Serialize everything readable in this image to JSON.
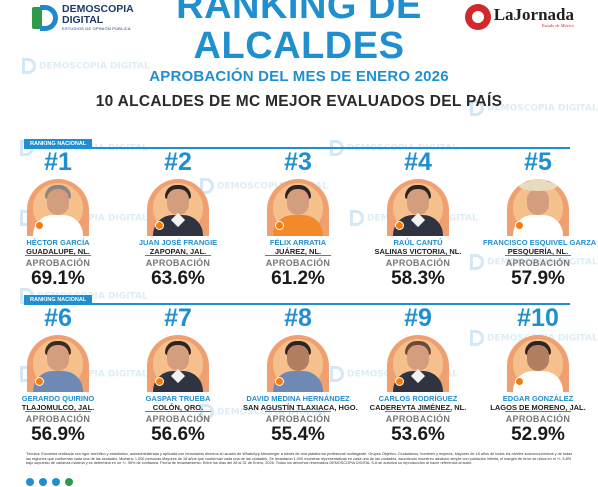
{
  "brand": {
    "name_line1": "DEMOSCOPIA",
    "name_line2": "DIGITAL",
    "tagline": "ESTUDIOS DE OPINIÓN PÚBLICA"
  },
  "partner": {
    "name": "LaJornada",
    "subtitle": "Estado de México"
  },
  "header": {
    "title_line1": "RANKING DE",
    "title_line2": "ALCALDES",
    "subtitle": "APROBACIÓN DEL MES DE ENERO 2026",
    "headline": "10 ALCALDES DE MC MEJOR EVALUADOS DEL PAÍS"
  },
  "watermark_text": "DEMOSCOPIA DIGITAL",
  "band_label": "RANKING NACIONAL",
  "approval_label": "APROBACIÓN",
  "mayors": [
    {
      "rank": "#1",
      "name": "HÉCTOR GARCÍA",
      "city": "GUADALUPE, NL.",
      "approval": "69.1%"
    },
    {
      "rank": "#2",
      "name": "JUAN JOSÉ FRANGIE",
      "city": "ZAPOPAN, JAL.",
      "approval": "63.6%"
    },
    {
      "rank": "#3",
      "name": "FÉLIX ARRATIA",
      "city": "JUÁREZ, NL.",
      "approval": "61.2%"
    },
    {
      "rank": "#4",
      "name": "RAÚL CANTÚ",
      "city": "SALINAS VICTORIA, NL.",
      "approval": "58.3%"
    },
    {
      "rank": "#5",
      "name": "FRANCISCO ESQUIVEL GARZA",
      "city": "PESQUERÍA, NL.",
      "approval": "57.9%"
    },
    {
      "rank": "#6",
      "name": "GERARDO QUIRINO",
      "city": "TLAJOMULCO, JAL.",
      "approval": "56.9%"
    },
    {
      "rank": "#7",
      "name": "GASPAR TRUEBA",
      "city": "COLÓN, QRO.",
      "approval": "56.6%"
    },
    {
      "rank": "#8",
      "name": "DAVID MEDINA HERNÁNDEZ",
      "city": "SAN AGUSTÍN TLAXIACA, HGO.",
      "approval": "55.4%"
    },
    {
      "rank": "#9",
      "name": "CARLOS RODRÍGUEZ",
      "city": "CADEREYTA JIMÉNEZ, NL.",
      "approval": "53.6%"
    },
    {
      "rank": "#10",
      "name": "EDGAR GONZÁLEZ",
      "city": "LAGOS DE MORENO, JAL.",
      "approval": "52.9%"
    }
  ],
  "footnote": "Técnica: Encuesta realizada con rigor científico y estadístico, autoadministrada y aplicada con formularios directos al usuario de WhatsApp Messenger a través de una plataforma profesional multiagente. Grupos Objetivo: Ciudadanos, hombres y mujeres, Mayores de 18 años de todos los niveles socioeconómicos y de todas las regiones que conforman cada una de las ciudades. Muestra: 1,000 personas Mayores de 18 años que conforman cada una de las ciudades. Se levantaron 1,000 muestras representativas en cada una de las ciudades, asumiendo muestreo aleatorio simple con población infinita, el margen de error se ubica en el +/- 3.8% bajo supuesto de varianza máxima y se determina en un +/- 95% de confianza. Fecha de levantamiento: Entre los días del 28 al 31 de Enero, 2026. Todos los derechos reservados DEMOSCOPIA DIGITAL S.A se autoriza su reproducción al hacer referencia al autor.",
  "colors": {
    "accent": "#1f8fd0",
    "mc_orange": "#f07c13",
    "photo_bg": "#f0a070",
    "partner_red": "#d0282d"
  },
  "icons": [
    "demoscopia-logo-icon",
    "lajornada-logo-icon",
    "facebook-icon",
    "instagram-icon",
    "twitter-icon",
    "whatsapp-icon"
  ]
}
